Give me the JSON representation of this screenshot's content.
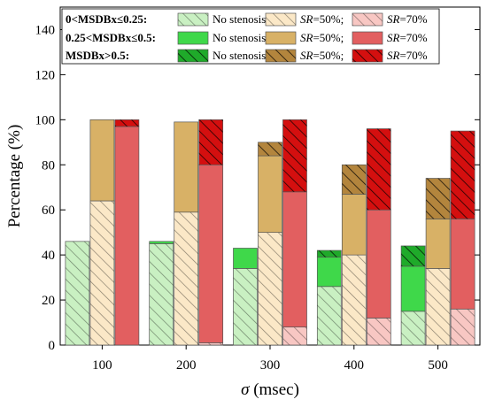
{
  "chart_data": {
    "type": "bar",
    "stacking": "stacked",
    "xlabel": "σ (msec)",
    "xlabel_symbol": "σ",
    "xlabel_unit": " (msec)",
    "ylabel": "Percentage (%)",
    "ylim": [
      0,
      150
    ],
    "yticks": [
      0,
      20,
      40,
      60,
      80,
      100,
      120,
      140
    ],
    "categories": [
      "100",
      "200",
      "300",
      "400",
      "500"
    ],
    "legend_position": "top-left",
    "colors": {
      "no_stenosis": [
        "#c9f0c2",
        "#3fd84a",
        "#1faa2a"
      ],
      "sr50": [
        "#fbe8c7",
        "#d8b166",
        "#b3853d"
      ],
      "sr70": [
        "#f8c7c3",
        "#e25f60",
        "#d40f0f"
      ]
    },
    "groups": [
      {
        "key": "no_stenosis",
        "legend_label": "No stenosis;",
        "cumulative_tops": {
          "low": [
            46,
            45,
            34,
            26,
            15
          ],
          "mid": [
            46,
            46,
            43,
            39,
            35
          ],
          "high": [
            46,
            46,
            43,
            42,
            44
          ]
        }
      },
      {
        "key": "sr50",
        "legend_label_italic": "SR",
        "legend_label_rest": "=50%;",
        "cumulative_tops": {
          "low": [
            64,
            59,
            50,
            40,
            34
          ],
          "mid": [
            100,
            99,
            84,
            67,
            56
          ],
          "high": [
            100,
            99,
            90,
            80,
            74
          ]
        }
      },
      {
        "key": "sr70",
        "legend_label_italic": "SR",
        "legend_label_rest": "=70%",
        "cumulative_tops": {
          "low": [
            0,
            1,
            8,
            12,
            16
          ],
          "mid": [
            97,
            80,
            68,
            60,
            56
          ],
          "high": [
            100,
            100,
            100,
            96,
            95
          ]
        }
      }
    ],
    "levels": [
      {
        "key": "low",
        "label": "0<MSDBx≤0.25:"
      },
      {
        "key": "mid",
        "label": "0.25<MSDBx≤0.5:"
      },
      {
        "key": "high",
        "label": "MSDBx>0.5:"
      }
    ]
  }
}
